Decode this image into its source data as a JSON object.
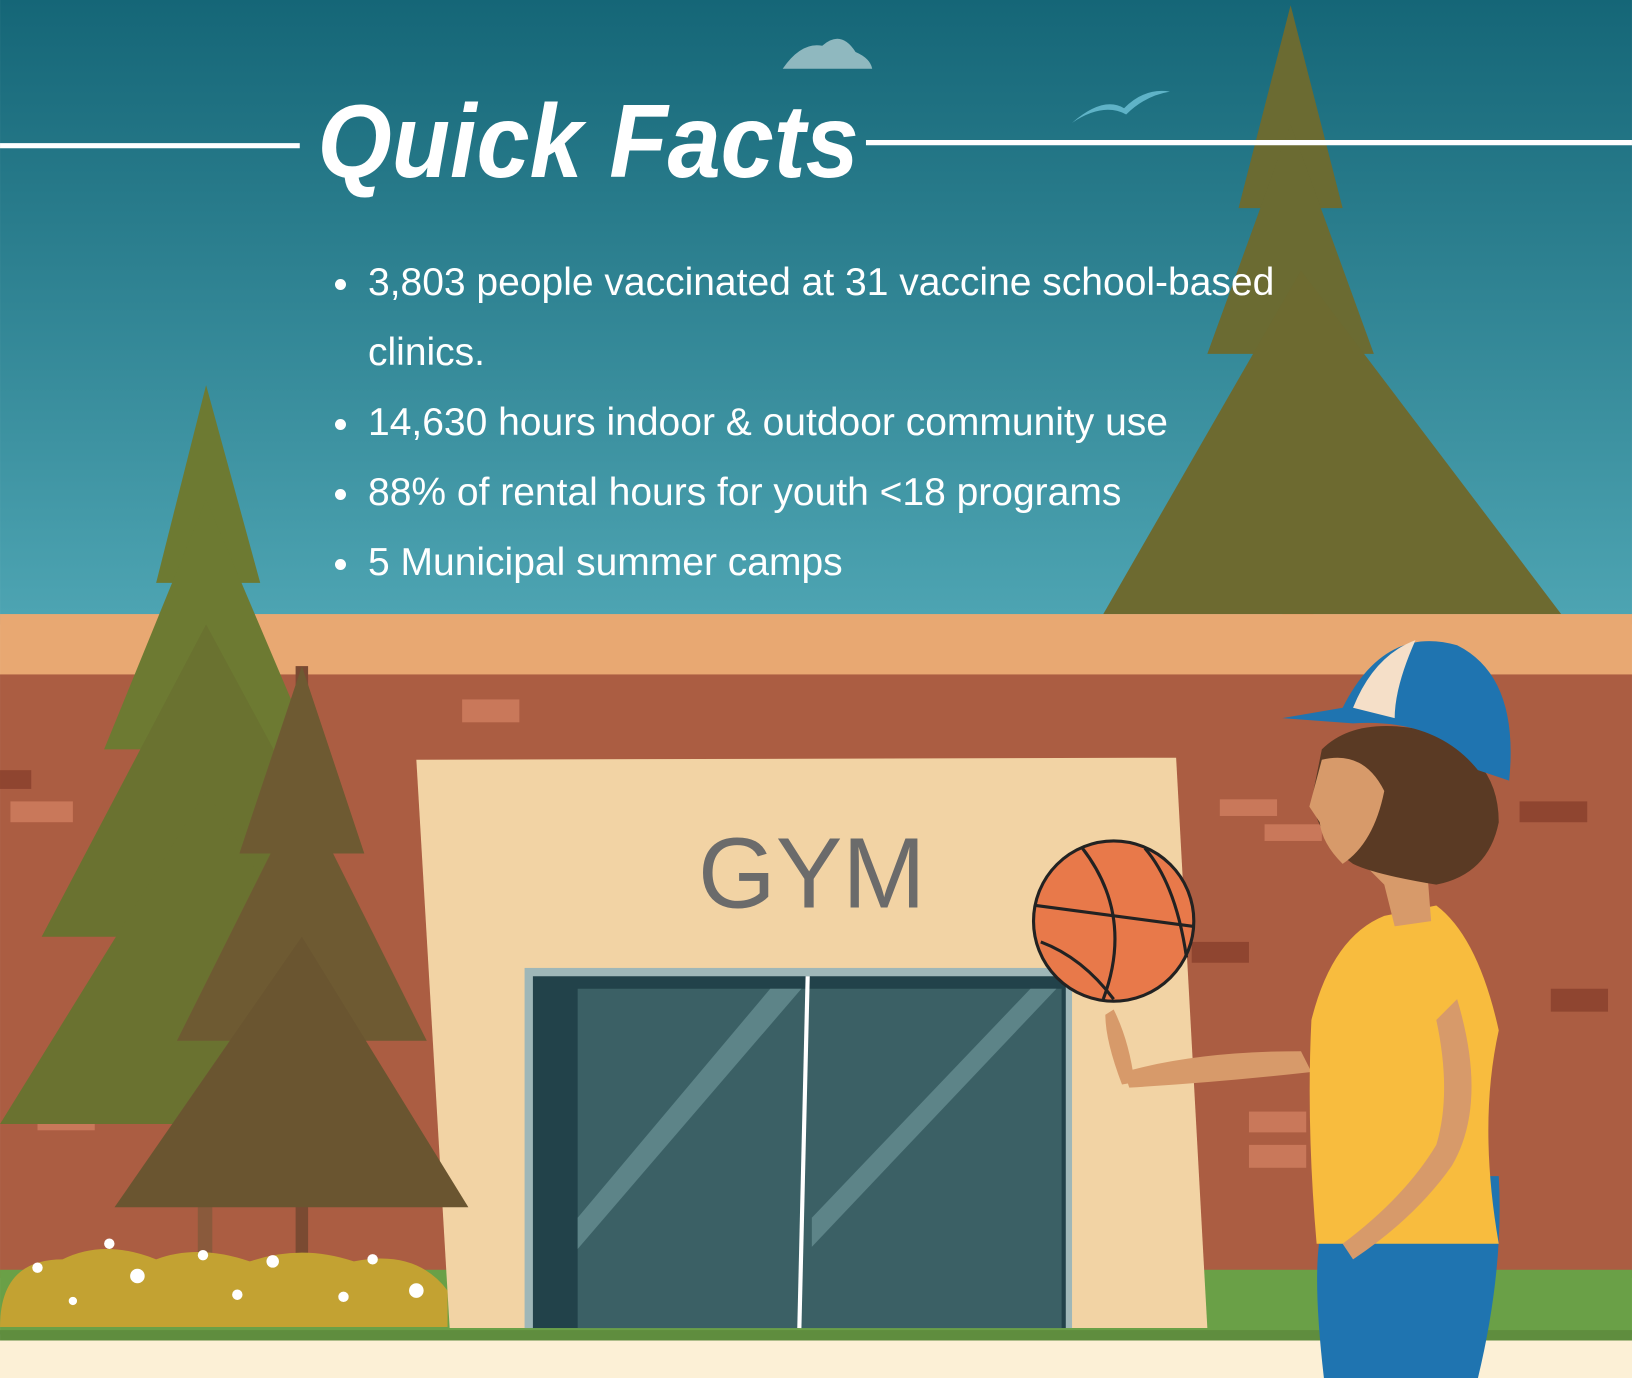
{
  "header": {
    "title": "Quick Facts"
  },
  "facts": [
    "3,803 people vaccinated at 31 vaccine school-based clinics.",
    "14,630 hours indoor & outdoor community use",
    "88% of rental hours for youth <18 programs",
    "5 Municipal summer camps"
  ],
  "sign": {
    "text": "GYM"
  }
}
